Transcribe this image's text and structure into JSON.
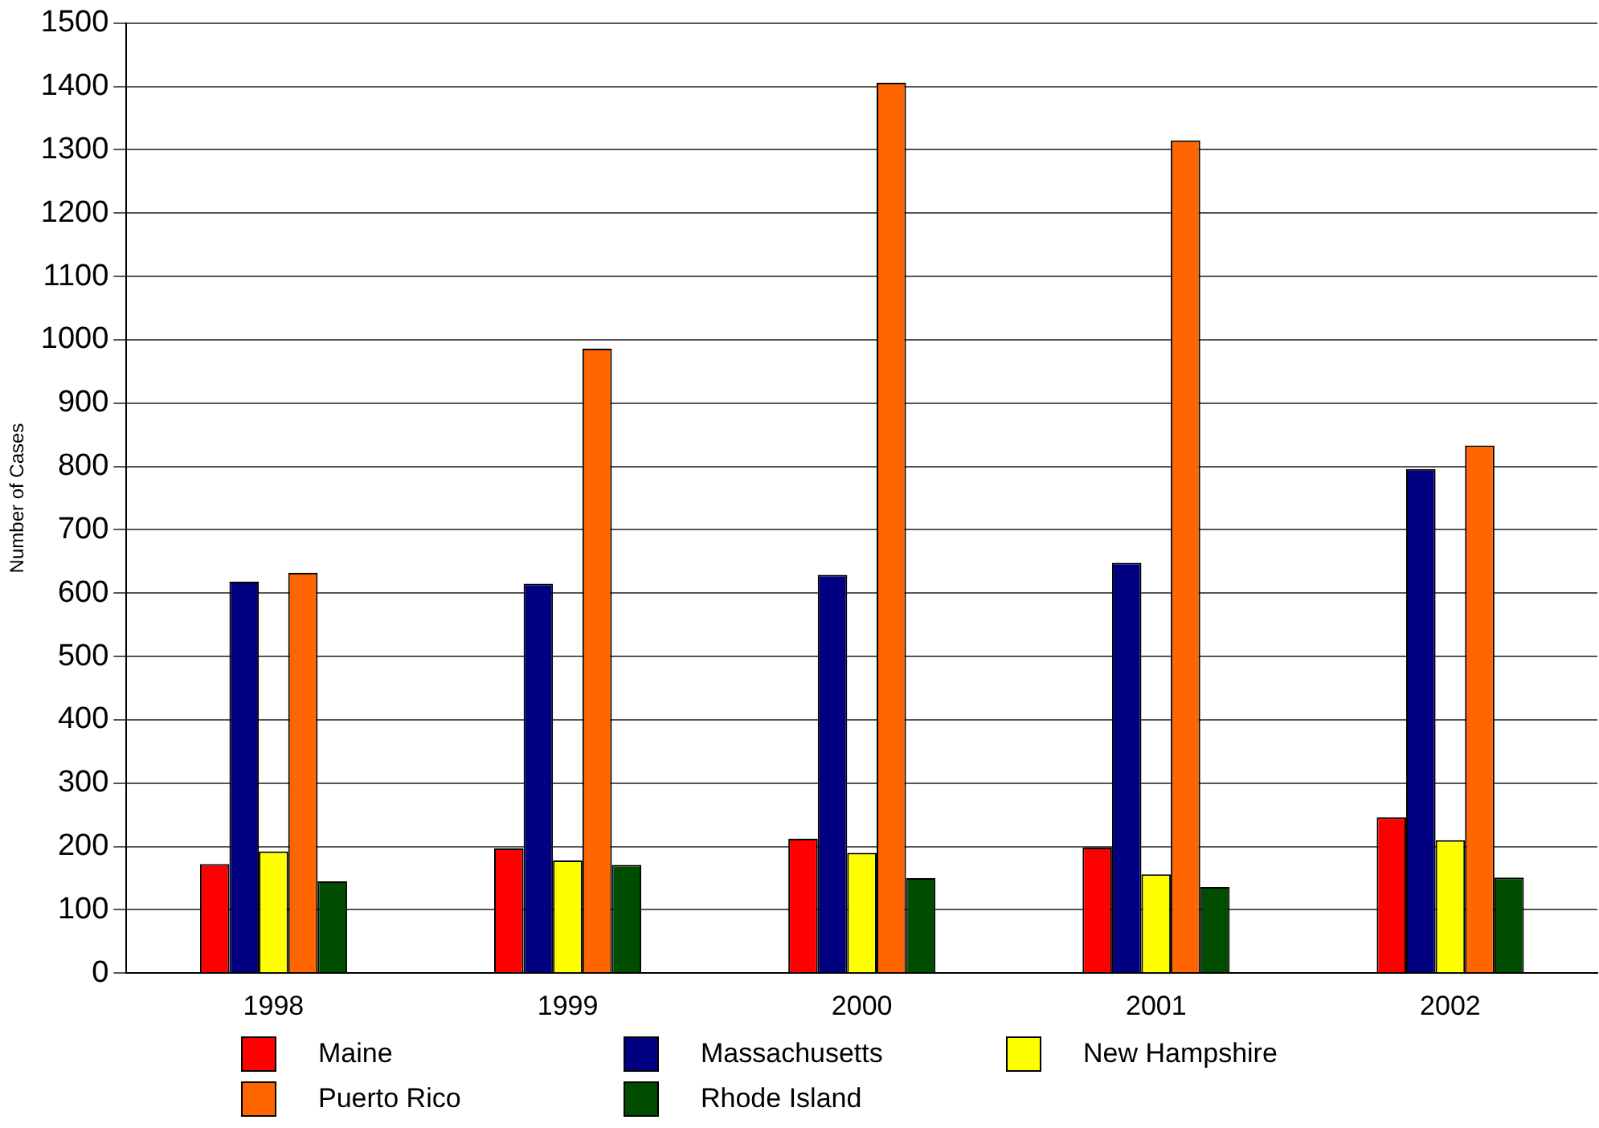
{
  "chart_data": {
    "type": "bar",
    "ylabel": "Number of Cases",
    "categories": [
      "1998",
      "1999",
      "2000",
      "2001",
      "2002"
    ],
    "series": [
      {
        "name": "Maine",
        "color": "#ff0000",
        "values": [
          172,
          197,
          212,
          198,
          246
        ]
      },
      {
        "name": "Massachusetts",
        "color": "#000080",
        "values": [
          618,
          615,
          629,
          648,
          796
        ]
      },
      {
        "name": "New Hampshire",
        "color": "#ffff00",
        "values": [
          192,
          178,
          190,
          156,
          210
        ]
      },
      {
        "name": "Puerto Rico",
        "color": "#ff6600",
        "values": [
          632,
          986,
          1406,
          1315,
          833
        ]
      },
      {
        "name": "Rhode Island",
        "color": "#004d00",
        "values": [
          145,
          171,
          150,
          136,
          151
        ]
      }
    ],
    "ylim": [
      0,
      1500
    ],
    "yticks": [
      0,
      100,
      200,
      300,
      400,
      500,
      600,
      700,
      800,
      900,
      1000,
      1100,
      1200,
      1300,
      1400,
      1500
    ],
    "grid": "y",
    "legend": "bottom"
  }
}
